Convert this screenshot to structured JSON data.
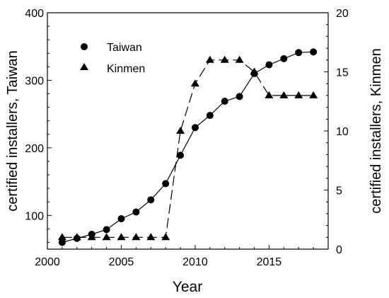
{
  "chart_data": {
    "type": "line",
    "xlabel": "Year",
    "y1label": "certified installers, Taiwan",
    "y2label": "certified installers, Kinmen",
    "xlim": [
      2000,
      2019
    ],
    "y1lim": [
      50,
      400
    ],
    "y2lim": [
      0,
      20
    ],
    "xticks": [
      "2000",
      "2005",
      "2010",
      "2015"
    ],
    "y1ticks": [
      "100",
      "200",
      "300",
      "400"
    ],
    "y2ticks": [
      "0",
      "5",
      "10",
      "15",
      "20"
    ],
    "legend_position": "top-left",
    "series": [
      {
        "name": "Taiwan",
        "axis": "left",
        "marker": "circle",
        "line": "solid",
        "x": [
          2001,
          2002,
          2003,
          2004,
          2005,
          2006,
          2007,
          2008,
          2009,
          2010,
          2011,
          2012,
          2013,
          2014,
          2015,
          2016,
          2017,
          2018
        ],
        "values": [
          60,
          66,
          72,
          79,
          95,
          105,
          123,
          147,
          189,
          230,
          248,
          269,
          276,
          310,
          323,
          332,
          341,
          342
        ]
      },
      {
        "name": "Kinmen",
        "axis": "right",
        "marker": "triangle",
        "line": "dashed",
        "x": [
          2001,
          2002,
          2003,
          2004,
          2005,
          2006,
          2007,
          2008,
          2009,
          2010,
          2011,
          2012,
          2013,
          2014,
          2015,
          2016,
          2017,
          2018
        ],
        "values": [
          1,
          1,
          1,
          1,
          1,
          1,
          1,
          1,
          10,
          14,
          16,
          16,
          16,
          15,
          13,
          13,
          13,
          13
        ]
      }
    ]
  }
}
